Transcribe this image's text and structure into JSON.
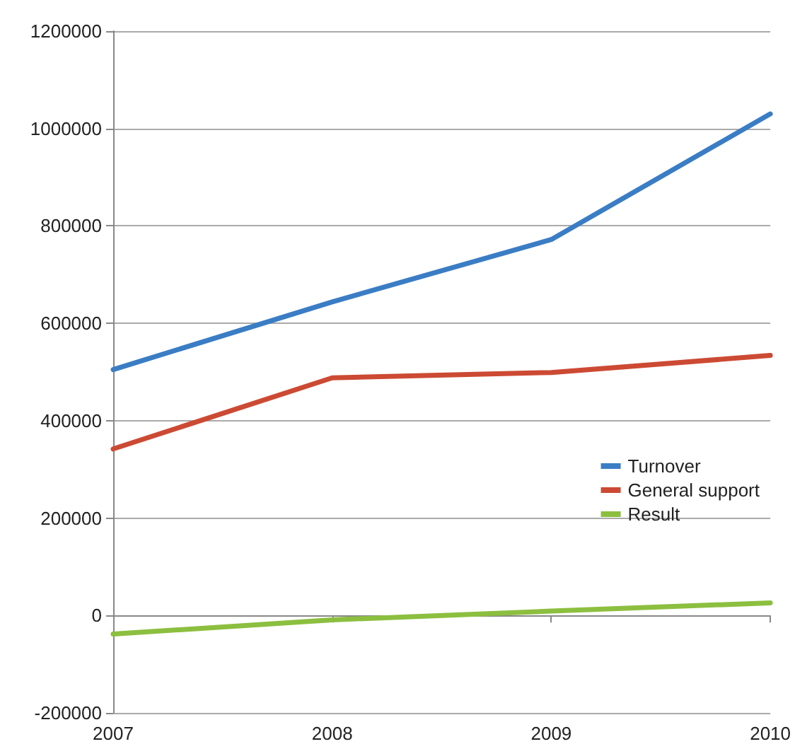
{
  "chart_data": {
    "type": "line",
    "categories": [
      "2007",
      "2008",
      "2009",
      "2010"
    ],
    "series": [
      {
        "name": "Turnover",
        "color": "#3a7dc4",
        "values": [
          505000,
          644000,
          772000,
          1030000
        ]
      },
      {
        "name": "General support",
        "color": "#cc4a33",
        "values": [
          342000,
          488000,
          499000,
          534000
        ]
      },
      {
        "name": "Result",
        "color": "#8cbf3f",
        "values": [
          -38000,
          -9000,
          9000,
          26000
        ]
      }
    ],
    "ylim": [
      -200000,
      1200000
    ],
    "yticks": [
      -200000,
      0,
      200000,
      400000,
      600000,
      800000,
      1000000,
      1200000
    ],
    "grid": "y",
    "legend": "right",
    "marker": "none",
    "line_style": "solid"
  }
}
